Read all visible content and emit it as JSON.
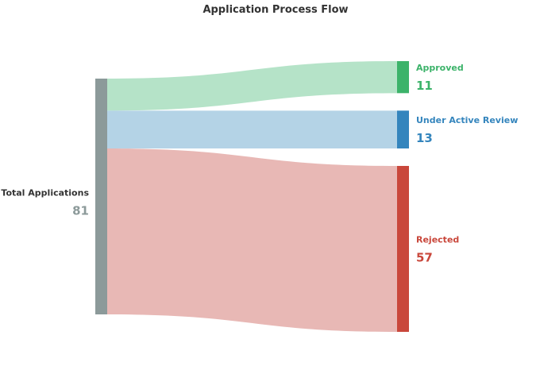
{
  "chart_data": {
    "type": "sankey",
    "title": "Application Process Flow",
    "source": {
      "label": "Total Applications",
      "value": 81,
      "color": "#8c9a9a"
    },
    "targets": [
      {
        "label": "Approved",
        "value": 11,
        "color": "#3cb36a",
        "link_color": "#b5e3c8"
      },
      {
        "label": "Under Active Review",
        "value": 13,
        "color": "#3485bd",
        "link_color": "#b4d3e6"
      },
      {
        "label": "Rejected",
        "value": 57,
        "color": "#c9473b",
        "link_color": "#e8b8b5"
      }
    ],
    "title_color": "#333333"
  }
}
